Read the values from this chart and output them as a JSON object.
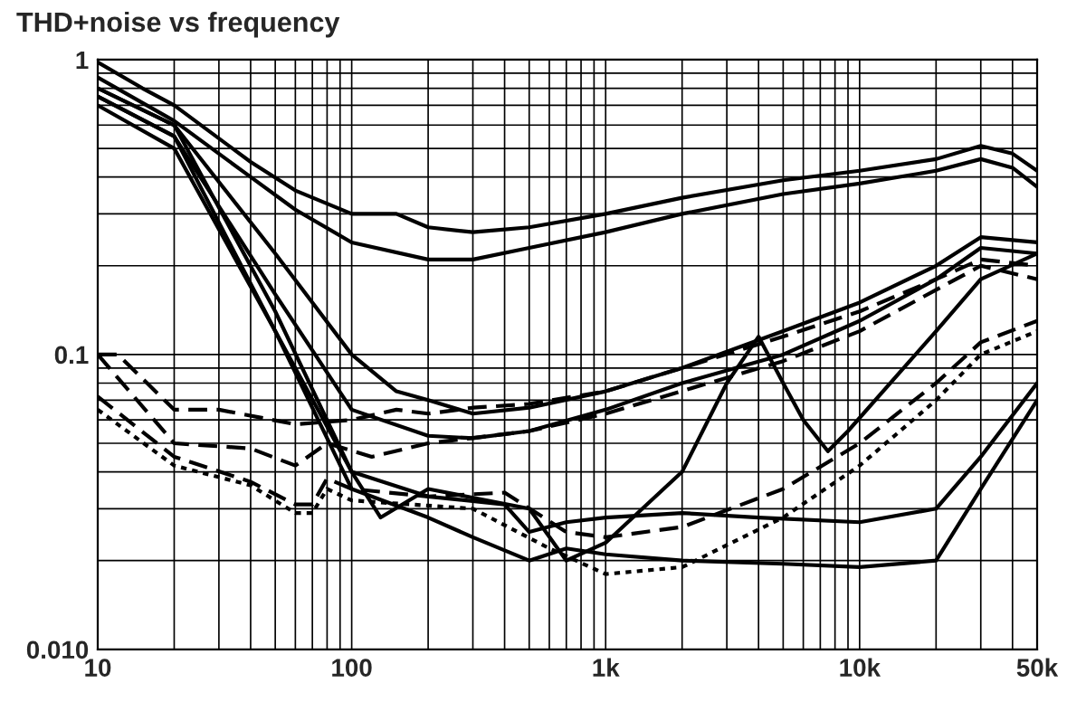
{
  "chart_data": {
    "type": "line",
    "title": "THD+noise vs frequency",
    "log": "xy",
    "grid": true,
    "xlim": [
      10,
      50000
    ],
    "xticks": [
      10,
      100,
      {
        "value": 1000,
        "label": "1k"
      },
      {
        "value": 10000,
        "label": "10k"
      },
      {
        "value": 50000,
        "label": "50k"
      }
    ],
    "ylim": [
      0.01,
      1
    ],
    "yticks": [
      {
        "value": 0.01,
        "label": "0.010"
      },
      0.1,
      1
    ],
    "series": [
      {
        "color": "#000000",
        "line_style": "solid",
        "x": [
          10,
          15,
          20,
          40,
          60,
          100,
          150,
          200,
          300,
          500,
          1000,
          2000,
          5000,
          10000,
          20000,
          30000,
          40000,
          50000
        ],
        "values": [
          0.98,
          0.8,
          0.7,
          0.45,
          0.36,
          0.3,
          0.3,
          0.27,
          0.26,
          0.27,
          0.3,
          0.34,
          0.39,
          0.42,
          0.46,
          0.51,
          0.48,
          0.42
        ]
      },
      {
        "color": "#000000",
        "line_style": "solid",
        "x": [
          10,
          20,
          40,
          60,
          100,
          200,
          300,
          500,
          1000,
          2000,
          5000,
          10000,
          20000,
          30000,
          40000,
          50000
        ],
        "values": [
          0.87,
          0.62,
          0.4,
          0.31,
          0.24,
          0.21,
          0.21,
          0.23,
          0.26,
          0.3,
          0.35,
          0.38,
          0.42,
          0.46,
          0.43,
          0.37
        ]
      },
      {
        "color": "#000000",
        "line_style": "solid",
        "x": [
          10,
          20,
          50,
          100,
          150,
          200,
          300,
          500,
          1000,
          2000,
          5000,
          10000,
          20000,
          30000,
          50000
        ],
        "values": [
          0.8,
          0.6,
          0.22,
          0.1,
          0.075,
          0.07,
          0.063,
          0.066,
          0.075,
          0.09,
          0.12,
          0.15,
          0.2,
          0.25,
          0.24
        ]
      },
      {
        "color": "#000000",
        "line_style": "solid",
        "x": [
          10,
          20,
          50,
          100,
          200,
          300,
          500,
          1000,
          2000,
          5000,
          10000,
          20000,
          30000,
          50000
        ],
        "values": [
          0.75,
          0.55,
          0.16,
          0.065,
          0.053,
          0.052,
          0.055,
          0.065,
          0.08,
          0.1,
          0.13,
          0.18,
          0.23,
          0.22
        ]
      },
      {
        "color": "#000000",
        "line_style": "dashed",
        "x": [
          10,
          12,
          20,
          30,
          60,
          100,
          150,
          200,
          300,
          500,
          1000,
          2000,
          5000,
          10000,
          20000,
          30000,
          50000
        ],
        "values": [
          0.1,
          0.1,
          0.065,
          0.065,
          0.058,
          0.06,
          0.065,
          0.063,
          0.066,
          0.068,
          0.075,
          0.09,
          0.115,
          0.14,
          0.18,
          0.21,
          0.2
        ]
      },
      {
        "color": "#000000",
        "line_style": "dashed",
        "x": [
          10,
          20,
          40,
          60,
          80,
          120,
          200,
          500,
          1000,
          5000,
          10000,
          30000,
          50000
        ],
        "values": [
          0.1,
          0.05,
          0.048,
          0.042,
          0.05,
          0.045,
          0.05,
          0.055,
          0.063,
          0.095,
          0.12,
          0.2,
          0.18
        ]
      },
      {
        "color": "#000000",
        "line_style": "solid",
        "x": [
          10,
          20,
          50,
          100,
          130,
          200,
          500,
          700,
          1000,
          2000,
          3000,
          4000,
          5000,
          6000,
          7500,
          9000,
          20000,
          30000,
          50000
        ],
        "values": [
          0.75,
          0.55,
          0.12,
          0.04,
          0.028,
          0.035,
          0.03,
          0.02,
          0.023,
          0.04,
          0.08,
          0.115,
          0.08,
          0.06,
          0.047,
          0.055,
          0.12,
          0.18,
          0.22
        ]
      },
      {
        "color": "#000000",
        "line_style": "solid",
        "x": [
          10,
          20,
          50,
          100,
          200,
          400,
          500,
          700,
          1000,
          2000,
          4000,
          10000,
          20000,
          30000,
          50000
        ],
        "values": [
          0.8,
          0.6,
          0.14,
          0.04,
          0.033,
          0.031,
          0.025,
          0.027,
          0.028,
          0.029,
          0.028,
          0.027,
          0.03,
          0.045,
          0.08
        ]
      },
      {
        "color": "#000000",
        "line_style": "solid",
        "x": [
          10,
          20,
          50,
          100,
          200,
          300,
          500,
          700,
          1000,
          2000,
          5000,
          10000,
          20000,
          30000,
          50000
        ],
        "values": [
          0.7,
          0.5,
          0.12,
          0.035,
          0.028,
          0.024,
          0.02,
          0.022,
          0.021,
          0.02,
          0.0195,
          0.019,
          0.02,
          0.035,
          0.07
        ]
      },
      {
        "color": "#000000",
        "line_style": "dashed",
        "x": [
          10,
          20,
          40,
          60,
          70,
          80,
          100,
          200,
          400,
          700,
          1000,
          2000,
          5000,
          10000,
          20000,
          30000,
          50000
        ],
        "values": [
          0.072,
          0.045,
          0.037,
          0.031,
          0.031,
          0.038,
          0.035,
          0.033,
          0.034,
          0.025,
          0.024,
          0.026,
          0.035,
          0.05,
          0.08,
          0.11,
          0.13
        ]
      },
      {
        "color": "#000000",
        "line_style": "dotted",
        "x": [
          10,
          20,
          40,
          60,
          70,
          80,
          100,
          300,
          600,
          1000,
          2000,
          5000,
          10000,
          20000,
          30000,
          50000
        ],
        "values": [
          0.065,
          0.042,
          0.036,
          0.029,
          0.029,
          0.035,
          0.032,
          0.03,
          0.022,
          0.018,
          0.019,
          0.028,
          0.042,
          0.07,
          0.1,
          0.12
        ]
      }
    ]
  }
}
